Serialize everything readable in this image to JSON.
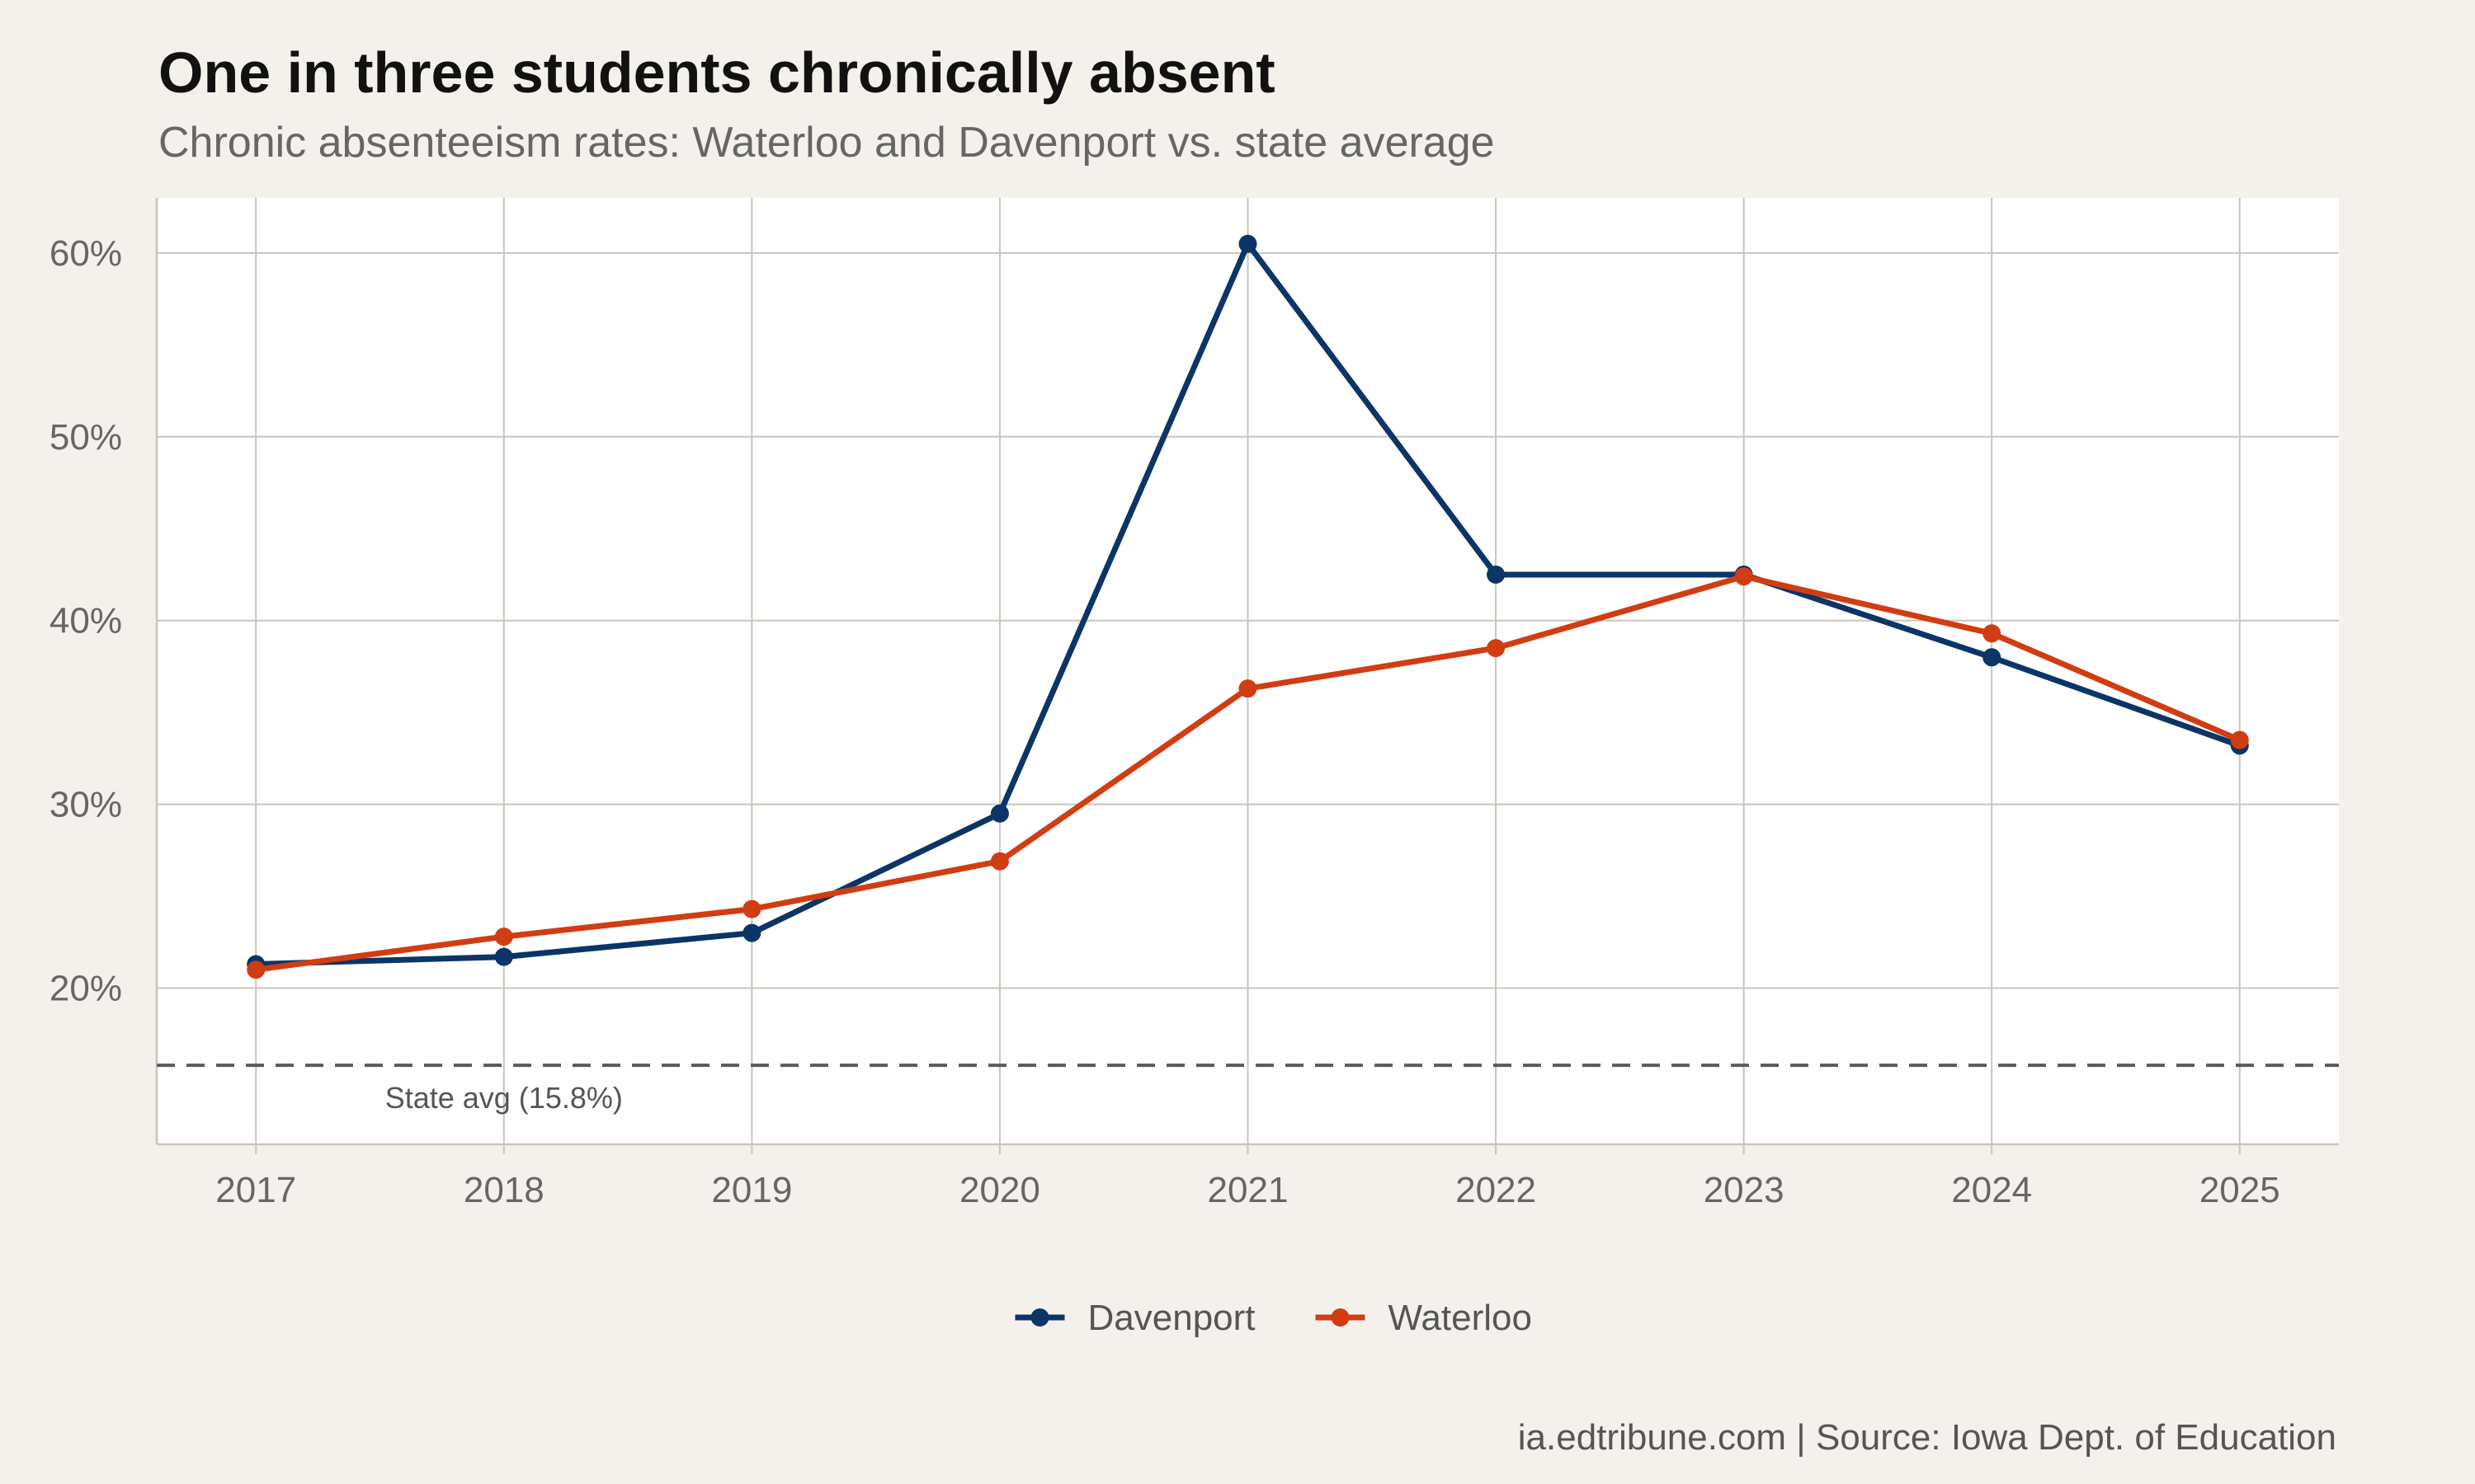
{
  "title": "One in three students chronically absent",
  "subtitle": "Chronic absenteeism rates: Waterloo and Davenport vs. state average",
  "caption": "ia.edtribune.com | Source: Iowa Dept. of Education",
  "colors": {
    "background": "#f4f1ec",
    "panel": "#ffffff",
    "grid": "#c9c5bd",
    "reference": "#5a5a5a"
  },
  "chart_data": {
    "type": "line",
    "x": [
      2017,
      2018,
      2019,
      2020,
      2021,
      2022,
      2023,
      2024,
      2025
    ],
    "x_tick_labels": [
      "2017",
      "2018",
      "2019",
      "2020",
      "2021",
      "2022",
      "2023",
      "2024",
      "2025"
    ],
    "y_ticks": [
      20,
      30,
      40,
      50,
      60
    ],
    "y_tick_labels": [
      "20%",
      "30%",
      "40%",
      "50%",
      "60%"
    ],
    "ylim": [
      11.5,
      63
    ],
    "xlim": [
      2016.6,
      2025.4
    ],
    "grid": true,
    "legend_position": "bottom",
    "series": [
      {
        "name": "Davenport",
        "color": "#0b3566",
        "values": [
          21.3,
          21.7,
          23.0,
          29.5,
          60.5,
          42.5,
          42.5,
          38.0,
          33.2
        ]
      },
      {
        "name": "Waterloo",
        "color": "#d13d12",
        "values": [
          21.0,
          22.8,
          24.3,
          26.9,
          36.3,
          38.5,
          42.4,
          39.3,
          33.5
        ]
      }
    ],
    "reference_line": {
      "value": 15.8,
      "label": "State avg (15.8%)",
      "style": "dashed"
    }
  }
}
